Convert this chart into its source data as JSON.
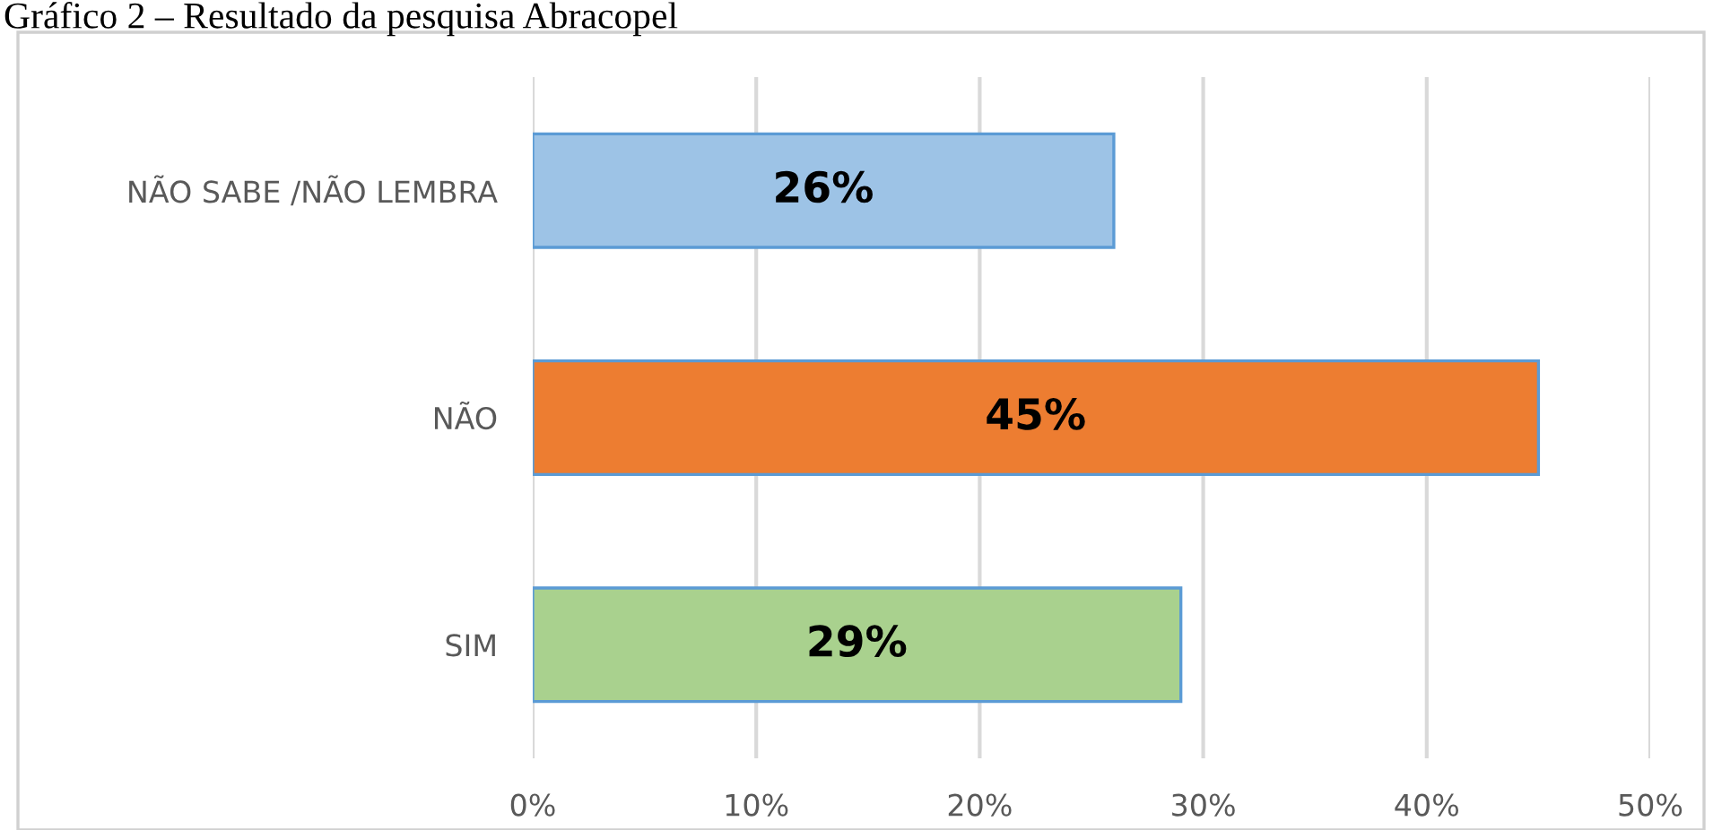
{
  "chart_data": {
    "type": "bar",
    "orientation": "horizontal",
    "title": "Gráfico 2 – Resultado da pesquisa Abracopel",
    "categories": [
      "NÃO SABE /NÃO LEMBRA",
      "NÃO",
      "SIM"
    ],
    "values": [
      26,
      45,
      29
    ],
    "colors": [
      "#9dc3e6",
      "#ed7d31",
      "#a9d18e"
    ],
    "value_labels": [
      "26%",
      "45%",
      "29%"
    ],
    "xlim": [
      0,
      50
    ],
    "xticks": [
      {
        "value": 0,
        "label": "0%"
      },
      {
        "value": 10,
        "label": "10%"
      },
      {
        "value": 20,
        "label": "20%"
      },
      {
        "value": 30,
        "label": "30%"
      },
      {
        "value": 40,
        "label": "40%"
      },
      {
        "value": 50,
        "label": "50%"
      }
    ],
    "grid": "x",
    "legend": false
  }
}
